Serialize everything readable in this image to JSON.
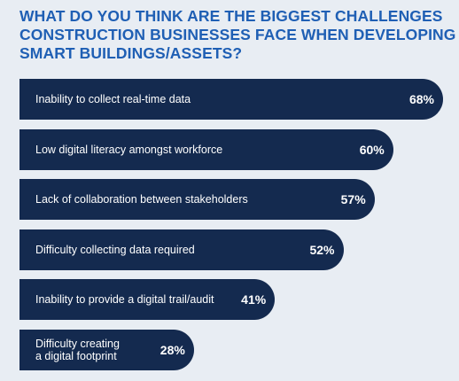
{
  "chart_data": {
    "type": "bar",
    "orientation": "horizontal",
    "title_lines": [
      "WHAT DO YOU THINK ARE THE BIGGEST CHALLENGES",
      "CONSTRUCTION BUSINESSES FACE WHEN DEVELOPING",
      "SMART BUILDINGS/ASSETS?"
    ],
    "categories": [
      "Inability to collect real-time data",
      "Low digital literacy amongst workforce",
      "Lack of collaboration between stakeholders",
      "Difficulty collecting data required",
      "Inability to provide a digital trail/audit",
      "Difficulty creating\na digital footprint"
    ],
    "values": [
      68,
      60,
      57,
      52,
      41,
      28
    ],
    "value_labels": [
      "68%",
      "60%",
      "57%",
      "52%",
      "41%",
      "28%"
    ],
    "unit": "%",
    "xlim": [
      0,
      68
    ],
    "grid": false,
    "colors": {
      "bar": "#142a4f",
      "title": "#1f5fb4",
      "background": "#e8edf3",
      "text": "#ffffff"
    }
  }
}
